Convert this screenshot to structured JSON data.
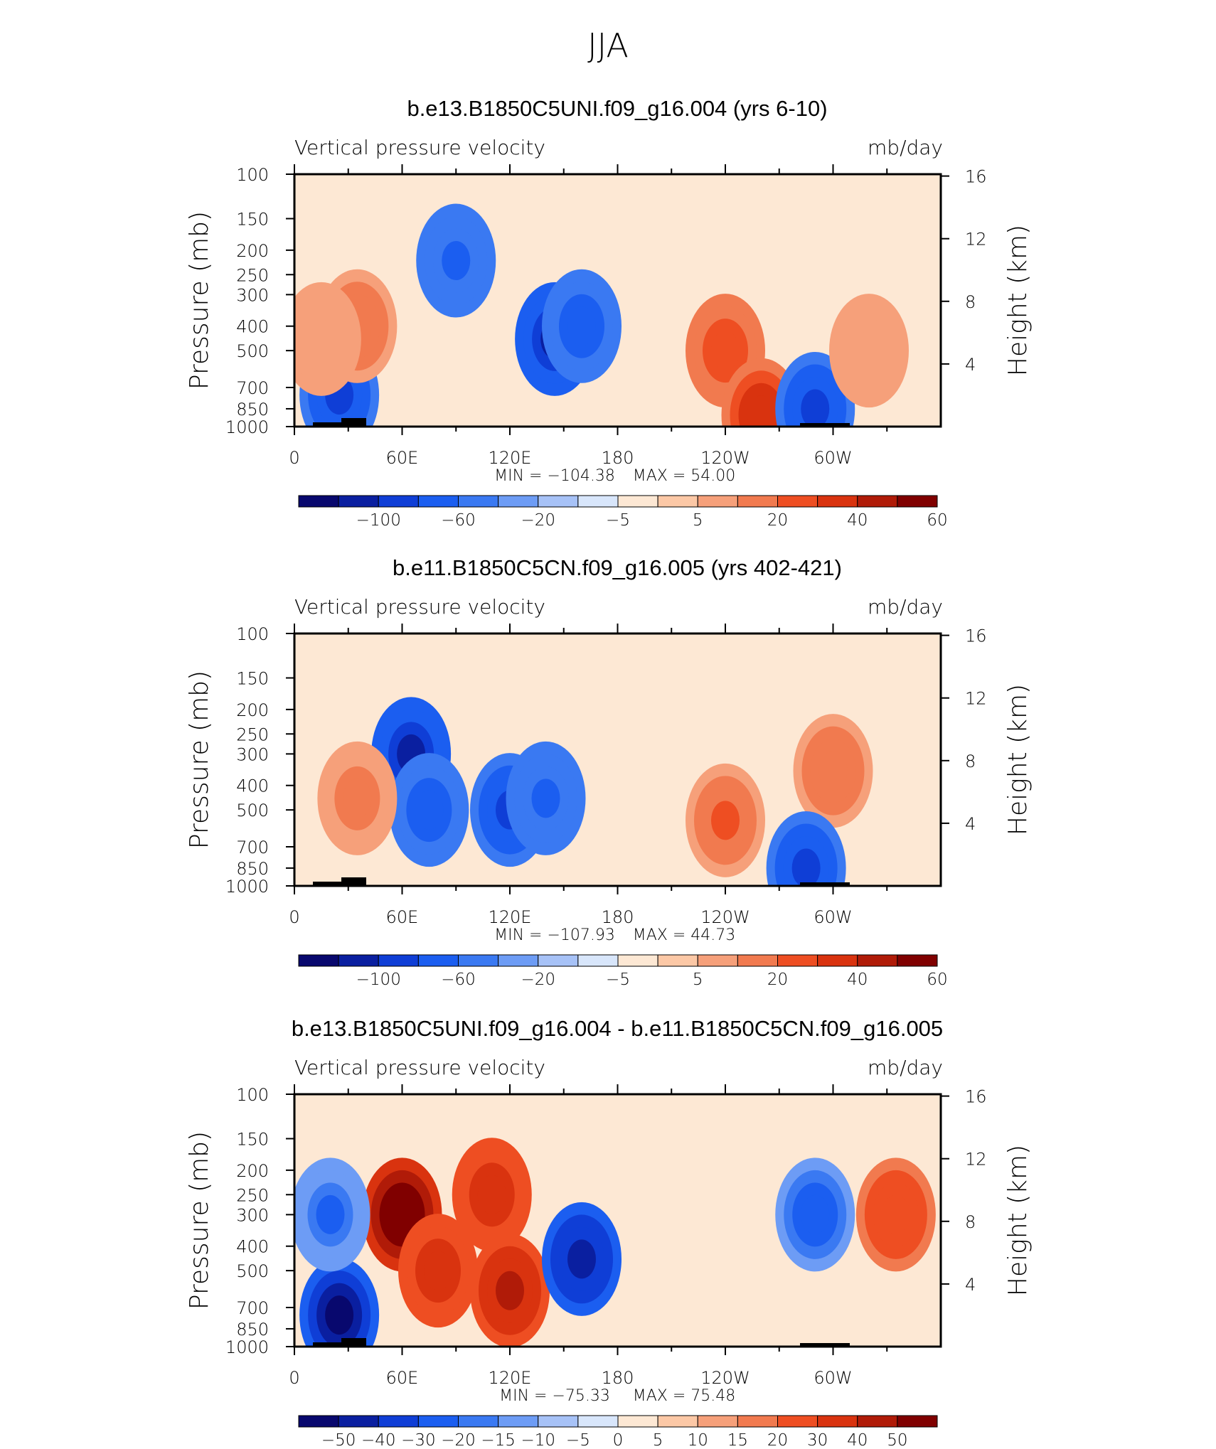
{
  "page_title": "JJA",
  "chart_data": [
    {
      "type": "heatmap",
      "title": "b.e13.B1850C5UNI.f09_g16.004 (yrs 6-10)",
      "left_string": "Vertical pressure velocity",
      "right_string": "mb/day",
      "xlabel": "",
      "ylabel": "Pressure (mb)",
      "ylabel_right": "Height (km)",
      "x_ticks": [
        "0",
        "60E",
        "120E",
        "180",
        "120W",
        "60W"
      ],
      "y_ticks": [
        "100",
        "150",
        "200",
        "250",
        "300",
        "400",
        "500",
        "700",
        "850",
        "1000"
      ],
      "y_right_ticks": [
        "16",
        "12",
        "8",
        "4"
      ],
      "min_label": "MIN = −104.38",
      "max_label": "MAX = 54.00",
      "colorbar_labels": [
        "−100",
        "−60",
        "−20",
        "−5",
        "5",
        "20",
        "40",
        "60"
      ],
      "regions": [
        {
          "lon": 25,
          "lev": 750,
          "value": -60
        },
        {
          "lon": 35,
          "lev": 400,
          "value": 30
        },
        {
          "lon": 15,
          "lev": 450,
          "value": 20
        },
        {
          "lon": 90,
          "lev": 220,
          "value": -40
        },
        {
          "lon": 145,
          "lev": 450,
          "value": -80
        },
        {
          "lon": 160,
          "lev": 400,
          "value": -50
        },
        {
          "lon": 240,
          "lev": 500,
          "value": 40
        },
        {
          "lon": 260,
          "lev": 900,
          "value": 50
        },
        {
          "lon": 290,
          "lev": 850,
          "value": -60
        },
        {
          "lon": 320,
          "lev": 500,
          "value": 20
        }
      ]
    },
    {
      "type": "heatmap",
      "title": "b.e11.B1850C5CN.f09_g16.005 (yrs 402-421)",
      "left_string": "Vertical pressure velocity",
      "right_string": "mb/day",
      "xlabel": "",
      "ylabel": "Pressure (mb)",
      "ylabel_right": "Height (km)",
      "x_ticks": [
        "0",
        "60E",
        "120E",
        "180",
        "120W",
        "60W"
      ],
      "y_ticks": [
        "100",
        "150",
        "200",
        "250",
        "300",
        "400",
        "500",
        "700",
        "850",
        "1000"
      ],
      "y_right_ticks": [
        "16",
        "12",
        "8",
        "4"
      ],
      "min_label": "MIN = −107.93",
      "max_label": "MAX = 44.73",
      "colorbar_labels": [
        "−100",
        "−60",
        "−20",
        "−5",
        "5",
        "20",
        "40",
        "60"
      ],
      "regions": [
        {
          "lon": 65,
          "lev": 300,
          "value": -80
        },
        {
          "lon": 75,
          "lev": 500,
          "value": -50
        },
        {
          "lon": 120,
          "lev": 500,
          "value": -60
        },
        {
          "lon": 140,
          "lev": 450,
          "value": -40
        },
        {
          "lon": 35,
          "lev": 450,
          "value": 25
        },
        {
          "lon": 240,
          "lev": 550,
          "value": 35
        },
        {
          "lon": 300,
          "lev": 350,
          "value": 30
        },
        {
          "lon": 285,
          "lev": 850,
          "value": -60
        }
      ]
    },
    {
      "type": "heatmap",
      "title": "b.e13.B1850C5UNI.f09_g16.004 - b.e11.B1850C5CN.f09_g16.005",
      "left_string": "Vertical pressure velocity",
      "right_string": "mb/day",
      "xlabel": "",
      "ylabel": "Pressure (mb)",
      "ylabel_right": "Height (km)",
      "x_ticks": [
        "0",
        "60E",
        "120E",
        "180",
        "120W",
        "60W"
      ],
      "y_ticks": [
        "100",
        "150",
        "200",
        "250",
        "300",
        "400",
        "500",
        "700",
        "850",
        "1000"
      ],
      "y_right_ticks": [
        "16",
        "12",
        "8",
        "4"
      ],
      "min_label": "MIN = −75.33",
      "max_label": "MAX = 75.48",
      "colorbar_labels": [
        "−50",
        "−40",
        "−30",
        "−20",
        "−15",
        "−10",
        "−5",
        "0",
        "5",
        "10",
        "15",
        "20",
        "30",
        "40",
        "50"
      ],
      "regions": [
        {
          "lon": 60,
          "lev": 300,
          "value": 60
        },
        {
          "lon": 80,
          "lev": 500,
          "value": 40
        },
        {
          "lon": 110,
          "lev": 250,
          "value": 40
        },
        {
          "lon": 120,
          "lev": 600,
          "value": 45
        },
        {
          "lon": 160,
          "lev": 450,
          "value": -45
        },
        {
          "lon": 25,
          "lev": 750,
          "value": -50
        },
        {
          "lon": 20,
          "lev": 300,
          "value": -20
        },
        {
          "lon": 290,
          "lev": 300,
          "value": -25
        },
        {
          "lon": 335,
          "lev": 300,
          "value": 30
        }
      ]
    }
  ]
}
